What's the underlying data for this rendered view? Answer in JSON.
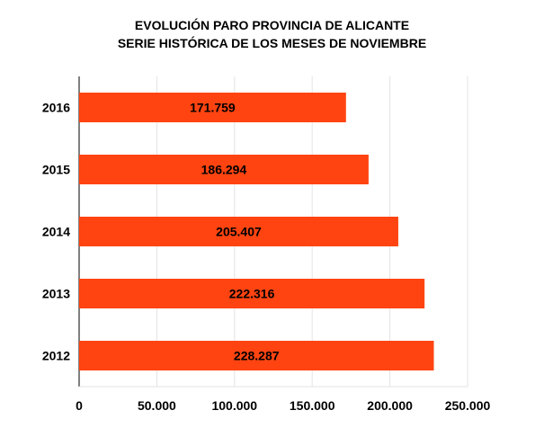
{
  "chart_data": {
    "type": "bar",
    "orientation": "horizontal",
    "title": [
      "EVOLUCIÓN PARO PROVINCIA DE ALICANTE",
      "SERIE HISTÓRICA DE LOS MESES DE NOVIEMBRE"
    ],
    "categories": [
      "2016",
      "2015",
      "2014",
      "2013",
      "2012"
    ],
    "values": [
      171759,
      186294,
      205407,
      222316,
      228287
    ],
    "data_labels": [
      "171.759",
      "186.294",
      "205.407",
      "222.316",
      "228.287"
    ],
    "xlim": [
      0,
      250000
    ],
    "x_ticks": [
      0,
      50000,
      100000,
      150000,
      200000,
      250000
    ],
    "x_tick_labels": [
      "0",
      "50.000",
      "100.000",
      "150.000",
      "200.000",
      "250.000"
    ],
    "xlabel": "",
    "ylabel": "",
    "grid": "vertical",
    "legend": "none",
    "colors": {
      "bar": "#ff4411",
      "grid": "#e3e3e3",
      "axis": "#000000",
      "text": "#000000"
    }
  }
}
